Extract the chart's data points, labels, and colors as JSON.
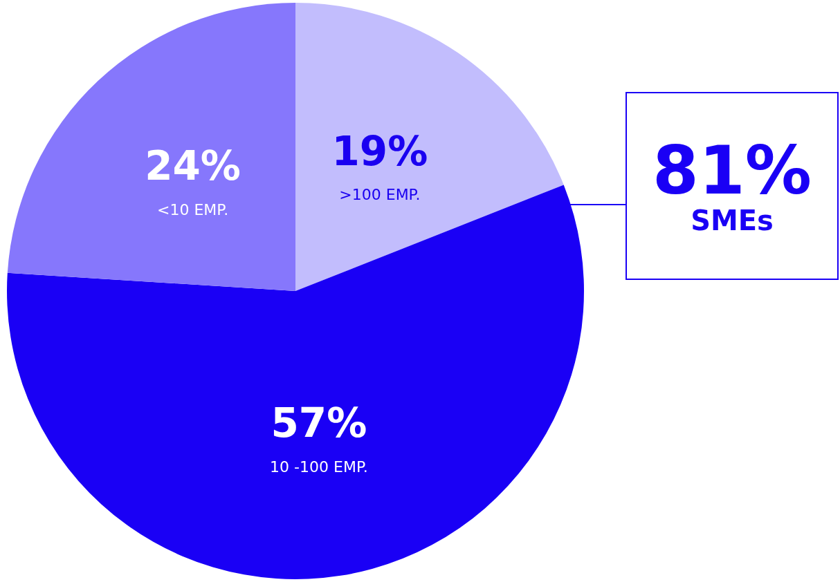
{
  "chart_data": {
    "type": "pie",
    "categories": [
      ">100 EMP.",
      "10 -100 EMP.",
      "<10 EMP."
    ],
    "values": [
      19,
      57,
      24
    ],
    "colors": [
      "#c2bdfd",
      "#1a00f5",
      "#8677fc"
    ],
    "value_labels": [
      "19%",
      "57%",
      "24%"
    ],
    "annotations": [
      "81%",
      "SMEs"
    ]
  }
}
